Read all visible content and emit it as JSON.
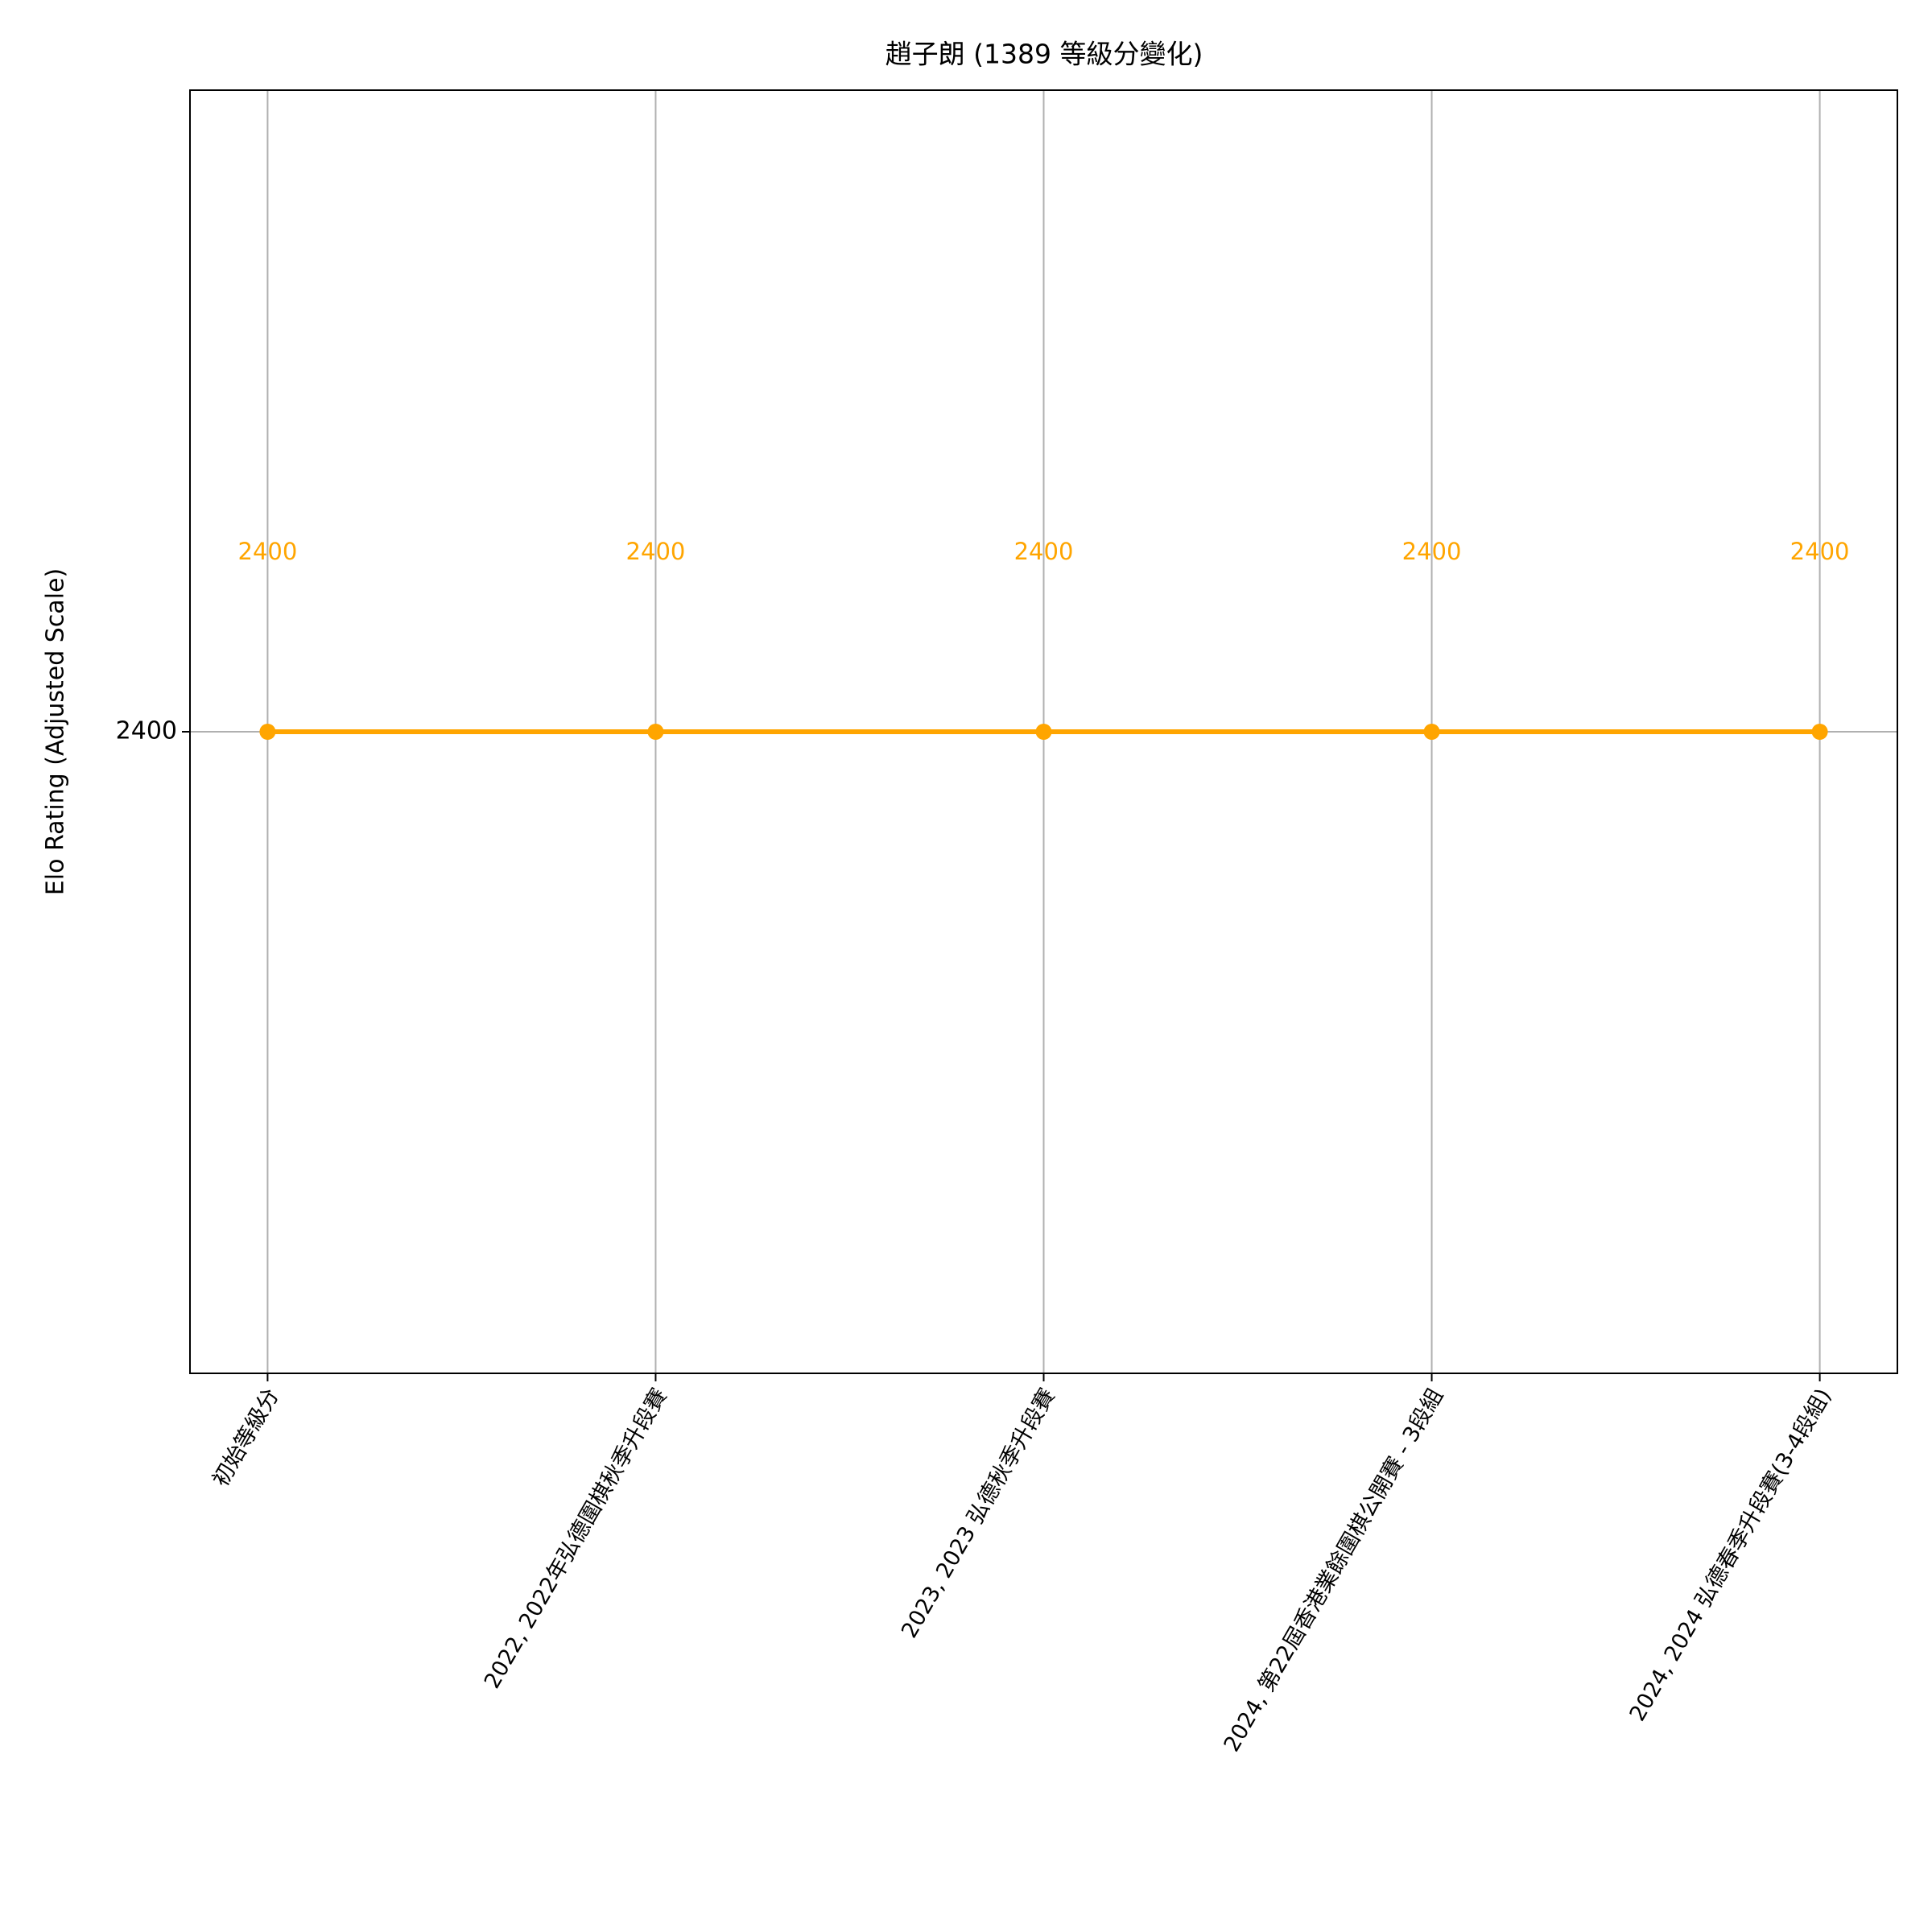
{
  "chart_data": {
    "type": "line",
    "title": "趙子朗 (1389 等級分變化)",
    "y_label": "Elo Rating (Adjusted Scale)",
    "categories": [
      "初始等級分",
      "2022, 2022年弘德圍棋秋季升段賽",
      "2023, 2023 弘德秋季升段賽",
      "2024, 第22屆香港業餘圍棋公開賽 - 3段組",
      "2024, 2024 弘德春季升段賽(3-4段組)"
    ],
    "values": [
      2400,
      2400,
      2400,
      2400,
      2400
    ],
    "color": "#ffa500",
    "ylim": [
      2397.6,
      2402.4
    ],
    "yticks": [
      2400
    ],
    "grid": true
  }
}
